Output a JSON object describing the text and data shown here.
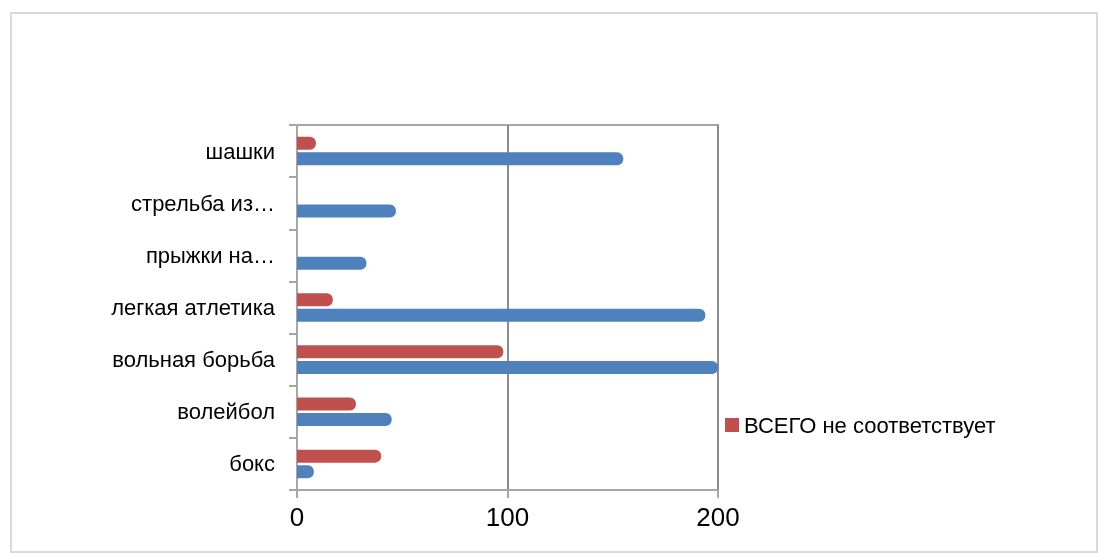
{
  "chart_data": {
    "type": "bar",
    "orientation": "horizontal",
    "categories": [
      "шашки",
      "стрельба из…",
      "прыжки на…",
      "легкая атлетика",
      "вольная борьба",
      "волейбол",
      "бокс"
    ],
    "series": [
      {
        "name": "ВСЕГО не соответствует",
        "color": "#c0504d",
        "values": [
          9,
          0,
          0,
          17,
          98,
          28,
          40
        ]
      },
      {
        "color": "#4f81bd",
        "values": [
          155,
          47,
          33,
          194,
          200,
          45,
          8
        ]
      }
    ],
    "xlim": [
      0,
      200
    ],
    "xticks": [
      0,
      100,
      200
    ],
    "grid": "x",
    "legend": "right"
  }
}
